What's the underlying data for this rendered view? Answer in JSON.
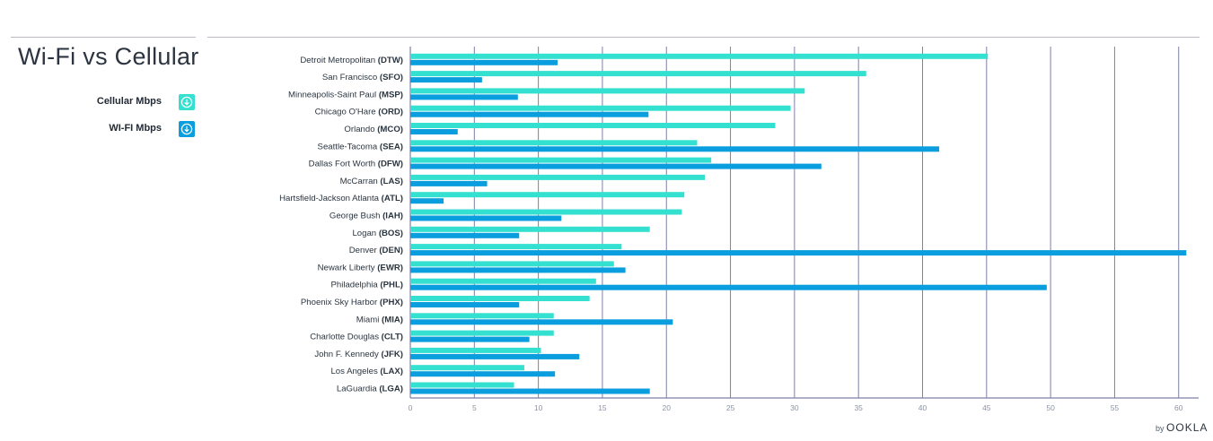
{
  "header": {
    "title": "Wi-Fi vs Cellular"
  },
  "legend": [
    {
      "label": "Cellular Mbps",
      "color": "#34e0cf",
      "icon": "download-icon"
    },
    {
      "label": "WI-FI Mbps",
      "color": "#0b9ede",
      "icon": "download-icon"
    }
  ],
  "branding": {
    "prefix": "by",
    "name": "OOKLA"
  },
  "chart_data": {
    "type": "bar",
    "orientation": "horizontal",
    "title": "Wi-Fi vs Cellular",
    "xlabel": "",
    "ylabel": "",
    "xlim": [
      0,
      61
    ],
    "xticks": [
      0,
      5,
      10,
      15,
      20,
      25,
      30,
      35,
      40,
      45,
      50,
      55,
      60
    ],
    "grid": true,
    "legend_position": "left",
    "categories": [
      {
        "name": "Detroit Metropolitan ",
        "code": "(DTW)"
      },
      {
        "name": "San Francisco ",
        "code": "(SFO)"
      },
      {
        "name": "Minneapolis-Saint Paul ",
        "code": "(MSP)"
      },
      {
        "name": "Chicago O'Hare ",
        "code": "(ORD)"
      },
      {
        "name": "Orlando ",
        "code": "(MCO)"
      },
      {
        "name": "Seattle-Tacoma ",
        "code": "(SEA)"
      },
      {
        "name": "Dallas Fort Worth ",
        "code": "(DFW)"
      },
      {
        "name": "McCarran ",
        "code": "(LAS)"
      },
      {
        "name": "Hartsfield-Jackson Atlanta ",
        "code": "(ATL)"
      },
      {
        "name": "George Bush ",
        "code": "(IAH)"
      },
      {
        "name": "Logan ",
        "code": "(BOS)"
      },
      {
        "name": "Denver ",
        "code": "(DEN)"
      },
      {
        "name": "Newark Liberty ",
        "code": "(EWR)"
      },
      {
        "name": "Philadelphia ",
        "code": "(PHL)"
      },
      {
        "name": "Phoenix Sky Harbor ",
        "code": "(PHX)"
      },
      {
        "name": "Miami ",
        "code": "(MIA)"
      },
      {
        "name": "Charlotte Douglas ",
        "code": "(CLT)"
      },
      {
        "name": "John F. Kennedy ",
        "code": "(JFK)"
      },
      {
        "name": "Los Angeles ",
        "code": "(LAX)"
      },
      {
        "name": "LaGuardia ",
        "code": "(LGA)"
      }
    ],
    "series": [
      {
        "name": "Cellular Mbps",
        "color": "#34e0cf",
        "values": [
          45.1,
          35.6,
          30.8,
          29.7,
          28.5,
          22.4,
          23.5,
          23.0,
          21.4,
          21.2,
          18.7,
          16.5,
          15.9,
          14.5,
          14.0,
          11.2,
          11.2,
          10.2,
          8.9,
          8.1
        ]
      },
      {
        "name": "WI-FI Mbps",
        "color": "#0b9ede",
        "values": [
          11.5,
          5.6,
          8.4,
          18.6,
          3.7,
          41.3,
          32.1,
          6.0,
          2.6,
          11.8,
          8.5,
          60.6,
          16.8,
          49.7,
          8.5,
          20.5,
          9.3,
          13.2,
          11.3,
          18.7
        ]
      }
    ]
  }
}
